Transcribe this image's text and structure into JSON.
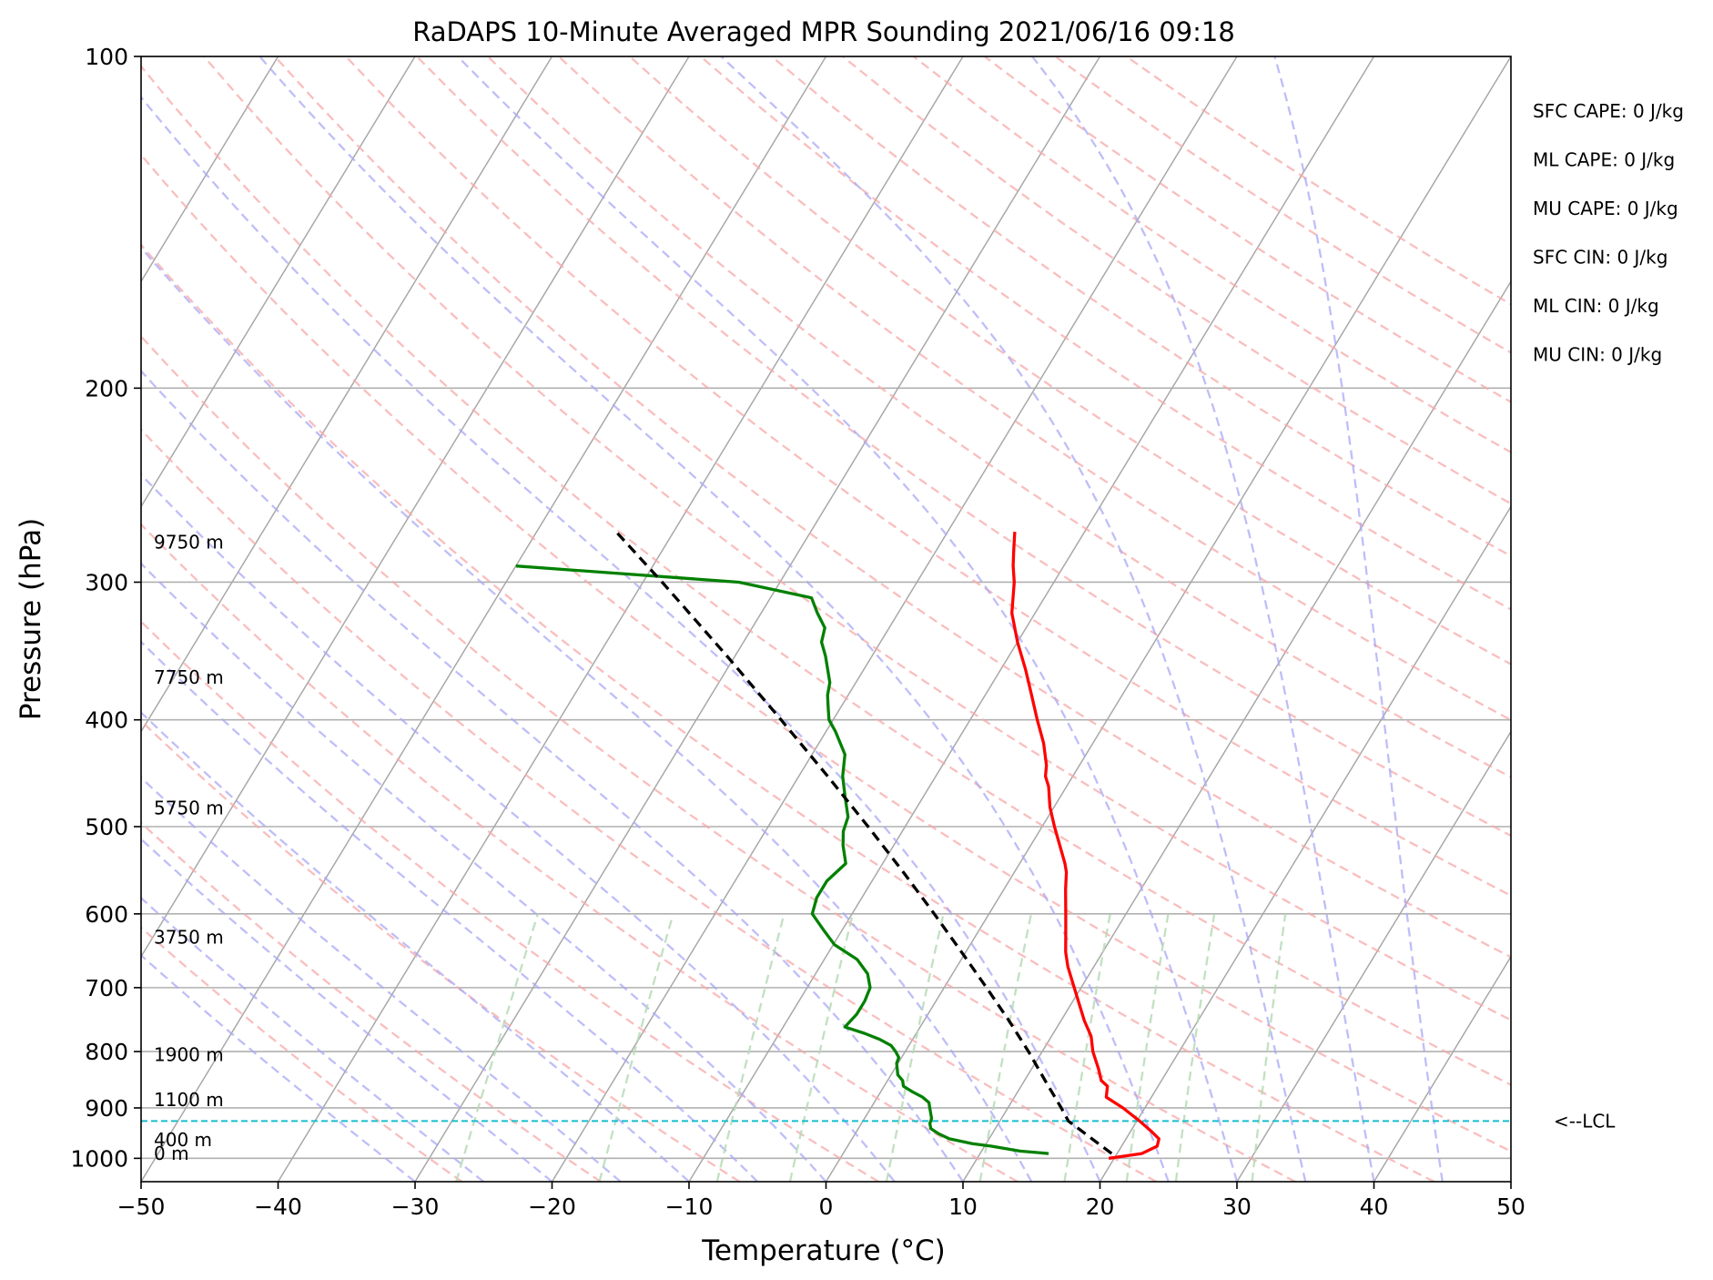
{
  "chart_data": {
    "type": "line",
    "chart_kind": "skew-t log-p sounding",
    "title": "RaDAPS 10-Minute Averaged MPR Sounding 2021/06/16 09:18",
    "xlabel": "Temperature (°C)",
    "ylabel": "Pressure (hPa)",
    "xlim": [
      -50,
      50
    ],
    "ylim": [
      1050,
      100
    ],
    "y_scale": "log",
    "x_ticks": [
      "−50",
      "−40",
      "−30",
      "−20",
      "−10",
      "0",
      "10",
      "20",
      "30",
      "40",
      "50"
    ],
    "y_ticks": [
      "100",
      "200",
      "300",
      "400",
      "500",
      "600",
      "700",
      "800",
      "900",
      "1000"
    ],
    "grid": true,
    "series": [
      {
        "role": "temperature",
        "color": "#ff0000",
        "points": [
          [
            1000,
            19.6
          ],
          [
            990,
            21.8
          ],
          [
            975,
            22.6
          ],
          [
            960,
            22.4
          ],
          [
            945,
            21.5
          ],
          [
            925,
            20.2
          ],
          [
            900,
            18.4
          ],
          [
            880,
            16.7
          ],
          [
            860,
            16.3
          ],
          [
            850,
            15.6
          ],
          [
            830,
            14.9
          ],
          [
            800,
            13.7
          ],
          [
            775,
            12.9
          ],
          [
            750,
            11.7
          ],
          [
            700,
            9.5
          ],
          [
            670,
            8.1
          ],
          [
            650,
            7.3
          ],
          [
            620,
            6.3
          ],
          [
            600,
            5.6
          ],
          [
            570,
            4.5
          ],
          [
            550,
            3.8
          ],
          [
            540,
            3.3
          ],
          [
            500,
            0.9
          ],
          [
            480,
            -0.3
          ],
          [
            460,
            -1.3
          ],
          [
            450,
            -2.0
          ],
          [
            440,
            -2.4
          ],
          [
            420,
            -3.6
          ],
          [
            400,
            -5.1
          ],
          [
            380,
            -6.6
          ],
          [
            360,
            -8.2
          ],
          [
            340,
            -10.0
          ],
          [
            320,
            -11.7
          ],
          [
            300,
            -12.9
          ],
          [
            290,
            -13.7
          ],
          [
            280,
            -14.4
          ],
          [
            270,
            -15.1
          ]
        ]
      },
      {
        "role": "dewpoint",
        "color": "#008000",
        "points": [
          [
            990,
            15.0
          ],
          [
            985,
            12.8
          ],
          [
            975,
            10.5
          ],
          [
            970,
            9.0
          ],
          [
            960,
            7.1
          ],
          [
            950,
            6.1
          ],
          [
            940,
            5.3
          ],
          [
            930,
            5.0
          ],
          [
            920,
            4.9
          ],
          [
            900,
            4.3
          ],
          [
            890,
            4.0
          ],
          [
            880,
            3.3
          ],
          [
            870,
            2.3
          ],
          [
            860,
            1.4
          ],
          [
            850,
            1.1
          ],
          [
            840,
            0.5
          ],
          [
            830,
            0.2
          ],
          [
            820,
            -0.1
          ],
          [
            810,
            -0.2
          ],
          [
            800,
            -0.7
          ],
          [
            790,
            -1.3
          ],
          [
            780,
            -2.4
          ],
          [
            770,
            -3.8
          ],
          [
            760,
            -5.5
          ],
          [
            740,
            -5.2
          ],
          [
            720,
            -5.2
          ],
          [
            700,
            -5.4
          ],
          [
            680,
            -6.2
          ],
          [
            660,
            -7.6
          ],
          [
            640,
            -9.9
          ],
          [
            620,
            -11.4
          ],
          [
            600,
            -12.9
          ],
          [
            580,
            -13.3
          ],
          [
            560,
            -13.3
          ],
          [
            540,
            -12.7
          ],
          [
            520,
            -13.7
          ],
          [
            505,
            -14.3
          ],
          [
            490,
            -14.6
          ],
          [
            470,
            -15.7
          ],
          [
            450,
            -16.8
          ],
          [
            430,
            -17.6
          ],
          [
            410,
            -19.3
          ],
          [
            400,
            -20.3
          ],
          [
            390,
            -20.9
          ],
          [
            380,
            -21.5
          ],
          [
            370,
            -21.9
          ],
          [
            350,
            -23.4
          ],
          [
            340,
            -24.3
          ],
          [
            330,
            -24.7
          ],
          [
            320,
            -25.9
          ],
          [
            310,
            -27.0
          ],
          [
            300,
            -33.0
          ],
          [
            290,
            -50.0
          ]
        ]
      },
      {
        "role": "parcel profile",
        "color": "#000000",
        "style": "dashed",
        "points": [
          [
            990,
            19.6
          ],
          [
            925,
            15.0
          ],
          [
            900,
            13.9
          ],
          [
            850,
            11.5
          ],
          [
            800,
            9.0
          ],
          [
            750,
            6.2
          ],
          [
            700,
            3.1
          ],
          [
            650,
            -0.3
          ],
          [
            600,
            -4.0
          ],
          [
            550,
            -8.1
          ],
          [
            500,
            -12.7
          ],
          [
            450,
            -17.9
          ],
          [
            400,
            -23.8
          ],
          [
            350,
            -30.6
          ],
          [
            300,
            -38.6
          ],
          [
            270,
            -44.2
          ]
        ]
      }
    ],
    "reference_lines": {
      "isotherms": "gray solid, skewed",
      "dry_adiabats": "red dashed",
      "moist_adiabats": "blue dashed",
      "mixing_ratio_lines": "green dashed, 1000–600 hPa"
    },
    "lcl": {
      "pressure": 925,
      "label": "<--LCL",
      "color": "#17becf"
    },
    "height_labels": [
      {
        "pressure": 990,
        "text": "0 m"
      },
      {
        "pressure": 962,
        "text": "400 m"
      },
      {
        "pressure": 885,
        "text": "1100 m"
      },
      {
        "pressure": 805,
        "text": "1900 m"
      },
      {
        "pressure": 630,
        "text": "3750 m"
      },
      {
        "pressure": 481,
        "text": "5750 m"
      },
      {
        "pressure": 366,
        "text": "7750 m"
      },
      {
        "pressure": 276,
        "text": "9750 m"
      }
    ],
    "annotations": [
      "SFC CAPE: 0 J/kg",
      "ML CAPE: 0 J/kg",
      "MU CAPE: 0 J/kg",
      "SFC CIN: 0 J/kg",
      "ML CIN: 0 J/kg",
      "MU CIN: 0 J/kg"
    ]
  }
}
